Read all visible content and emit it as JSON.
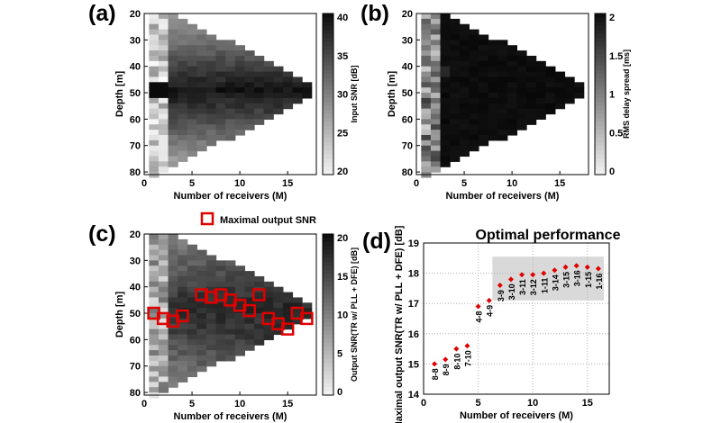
{
  "panels": {
    "a": {
      "label": "(a)",
      "xlabel": "Number of receivers (M)",
      "ylabel": "Depth [m]",
      "cbar_label": "Input SNR [dB]",
      "yticks": [
        "20",
        "30",
        "40",
        "50",
        "60",
        "70",
        "80"
      ],
      "xticks": [
        "0",
        "5",
        "10",
        "15"
      ],
      "cbar_ticks": [
        "40",
        "35",
        "30",
        "25",
        "20"
      ]
    },
    "b": {
      "label": "(b)",
      "xlabel": "Number of receivers (M)",
      "ylabel": "Depth [m]",
      "cbar_label": "RMS delay spread [ms]",
      "yticks": [
        "20",
        "30",
        "40",
        "50",
        "60",
        "70",
        "80"
      ],
      "xticks": [
        "0",
        "5",
        "10",
        "15"
      ],
      "cbar_ticks": [
        "2",
        "1.5",
        "1",
        "0.5",
        "0"
      ]
    },
    "c": {
      "label": "(c)",
      "xlabel": "Number of receivers (M)",
      "ylabel": "Depth [m]",
      "cbar_label": "Output SNR(TR w/ PLL + DFE) [dB]",
      "yticks": [
        "20",
        "30",
        "40",
        "50",
        "60",
        "70",
        "80"
      ],
      "xticks": [
        "0",
        "5",
        "10",
        "15"
      ],
      "cbar_ticks": [
        "20",
        "15",
        "10",
        "5",
        "0"
      ],
      "legend": "Maximal  output  SNR"
    },
    "d": {
      "label": "(d)"
    }
  },
  "chart_data": [
    {
      "type": "heatmap",
      "id": "a",
      "colormap": "gray",
      "clim": [
        20,
        40
      ],
      "xlim": [
        0,
        18
      ],
      "ylim": [
        81,
        20
      ],
      "note_values": "Input SNR varies with depth and receiver count; peak near depth 48 m"
    },
    {
      "type": "heatmap",
      "id": "b",
      "colormap": "gray",
      "clim": [
        -0.1,
        2
      ],
      "xlim": [
        0,
        18
      ],
      "ylim": [
        81,
        20
      ]
    },
    {
      "type": "heatmap",
      "id": "c",
      "colormap": "gray",
      "clim": [
        0,
        20
      ],
      "xlim": [
        0,
        18
      ],
      "ylim": [
        81,
        20
      ],
      "max_points": [
        [
          1,
          50
        ],
        [
          2,
          52
        ],
        [
          3,
          53
        ],
        [
          4,
          51
        ],
        [
          6,
          43
        ],
        [
          7,
          44
        ],
        [
          8,
          43
        ],
        [
          9,
          45
        ],
        [
          10,
          47
        ],
        [
          11,
          49
        ],
        [
          12,
          43
        ],
        [
          13,
          52
        ],
        [
          14,
          54
        ],
        [
          15,
          56
        ],
        [
          16,
          50
        ],
        [
          17,
          52
        ]
      ]
    },
    {
      "type": "scatter",
      "id": "d",
      "title": "Optimal performance",
      "xlabel": "Number of receivers (M)",
      "ylabel": "Maximal output SNR(TR w/ PLL + DFE) [dB]",
      "xlim": [
        0,
        17
      ],
      "ylim": [
        14,
        19
      ],
      "xticks": [
        0,
        5,
        10,
        15
      ],
      "yticks": [
        14,
        15,
        16,
        17,
        18,
        19
      ],
      "grid": true,
      "highlight_range": {
        "x": [
          6.3,
          16.5
        ],
        "y": [
          17.1,
          18.55
        ]
      },
      "x": [
        1,
        2,
        3,
        4,
        5,
        6,
        7,
        8,
        9,
        10,
        11,
        12,
        13,
        14,
        15,
        16
      ],
      "y": [
        15.0,
        15.15,
        15.5,
        15.6,
        16.9,
        17.1,
        17.6,
        17.8,
        17.95,
        17.95,
        18.0,
        18.1,
        18.2,
        18.25,
        18.2,
        18.15
      ],
      "labels": [
        "8-8",
        "8-9",
        "8-10",
        "7-10",
        "4-8",
        "4-9",
        "3-9",
        "3-10",
        "3-11",
        "3-12",
        "1-11",
        "3-14",
        "3-15",
        "3-16",
        "1-15",
        "1-16"
      ]
    }
  ]
}
